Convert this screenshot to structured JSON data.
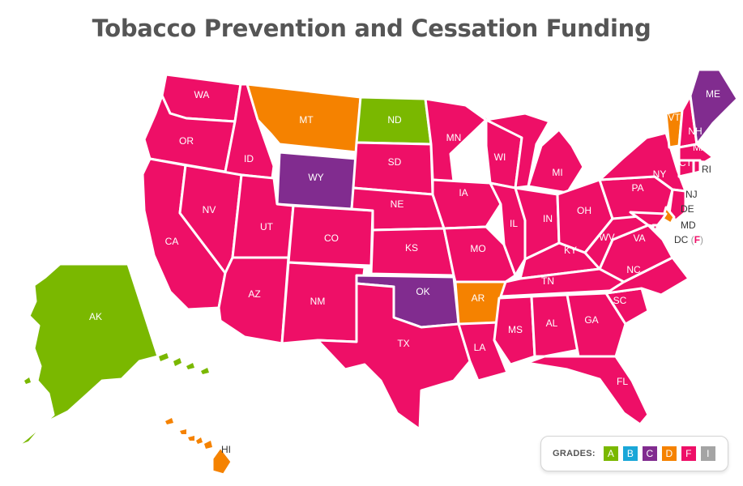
{
  "title": "Tobacco Prevention and Cessation Funding",
  "colors": {
    "A": "#7ab800",
    "B": "#1aa7d8",
    "C": "#812c8f",
    "D": "#f58200",
    "F": "#ee0f67",
    "I": "#a4a4a4"
  },
  "legend": {
    "label": "GRADES:",
    "grades": [
      "A",
      "B",
      "C",
      "D",
      "F",
      "I"
    ]
  },
  "states": [
    {
      "abbr": "WA",
      "grade": "F"
    },
    {
      "abbr": "OR",
      "grade": "F"
    },
    {
      "abbr": "CA",
      "grade": "F"
    },
    {
      "abbr": "ID",
      "grade": "F"
    },
    {
      "abbr": "NV",
      "grade": "F"
    },
    {
      "abbr": "MT",
      "grade": "D"
    },
    {
      "abbr": "WY",
      "grade": "C"
    },
    {
      "abbr": "UT",
      "grade": "F"
    },
    {
      "abbr": "AZ",
      "grade": "F"
    },
    {
      "abbr": "CO",
      "grade": "F"
    },
    {
      "abbr": "NM",
      "grade": "F"
    },
    {
      "abbr": "ND",
      "grade": "A"
    },
    {
      "abbr": "SD",
      "grade": "F"
    },
    {
      "abbr": "NE",
      "grade": "F"
    },
    {
      "abbr": "KS",
      "grade": "F"
    },
    {
      "abbr": "OK",
      "grade": "C"
    },
    {
      "abbr": "TX",
      "grade": "F"
    },
    {
      "abbr": "MN",
      "grade": "F"
    },
    {
      "abbr": "IA",
      "grade": "F"
    },
    {
      "abbr": "MO",
      "grade": "F"
    },
    {
      "abbr": "AR",
      "grade": "D"
    },
    {
      "abbr": "LA",
      "grade": "F"
    },
    {
      "abbr": "WI",
      "grade": "F"
    },
    {
      "abbr": "IL",
      "grade": "F"
    },
    {
      "abbr": "MI",
      "grade": "F"
    },
    {
      "abbr": "IN",
      "grade": "F"
    },
    {
      "abbr": "OH",
      "grade": "F"
    },
    {
      "abbr": "KY",
      "grade": "F"
    },
    {
      "abbr": "TN",
      "grade": "F"
    },
    {
      "abbr": "MS",
      "grade": "F"
    },
    {
      "abbr": "AL",
      "grade": "F"
    },
    {
      "abbr": "GA",
      "grade": "F"
    },
    {
      "abbr": "FL",
      "grade": "F"
    },
    {
      "abbr": "SC",
      "grade": "F"
    },
    {
      "abbr": "NC",
      "grade": "F"
    },
    {
      "abbr": "VA",
      "grade": "F"
    },
    {
      "abbr": "WV",
      "grade": "F"
    },
    {
      "abbr": "PA",
      "grade": "F"
    },
    {
      "abbr": "NY",
      "grade": "F"
    },
    {
      "abbr": "VT",
      "grade": "D"
    },
    {
      "abbr": "NH",
      "grade": "F"
    },
    {
      "abbr": "ME",
      "grade": "C"
    },
    {
      "abbr": "MA",
      "grade": "F"
    },
    {
      "abbr": "CT",
      "grade": "F"
    },
    {
      "abbr": "RI",
      "grade": "F"
    },
    {
      "abbr": "NJ",
      "grade": "F"
    },
    {
      "abbr": "DE",
      "grade": "D"
    },
    {
      "abbr": "MD",
      "grade": "F"
    },
    {
      "abbr": "DC",
      "grade": "F"
    },
    {
      "abbr": "AK",
      "grade": "A"
    },
    {
      "abbr": "HI",
      "grade": "D"
    }
  ]
}
